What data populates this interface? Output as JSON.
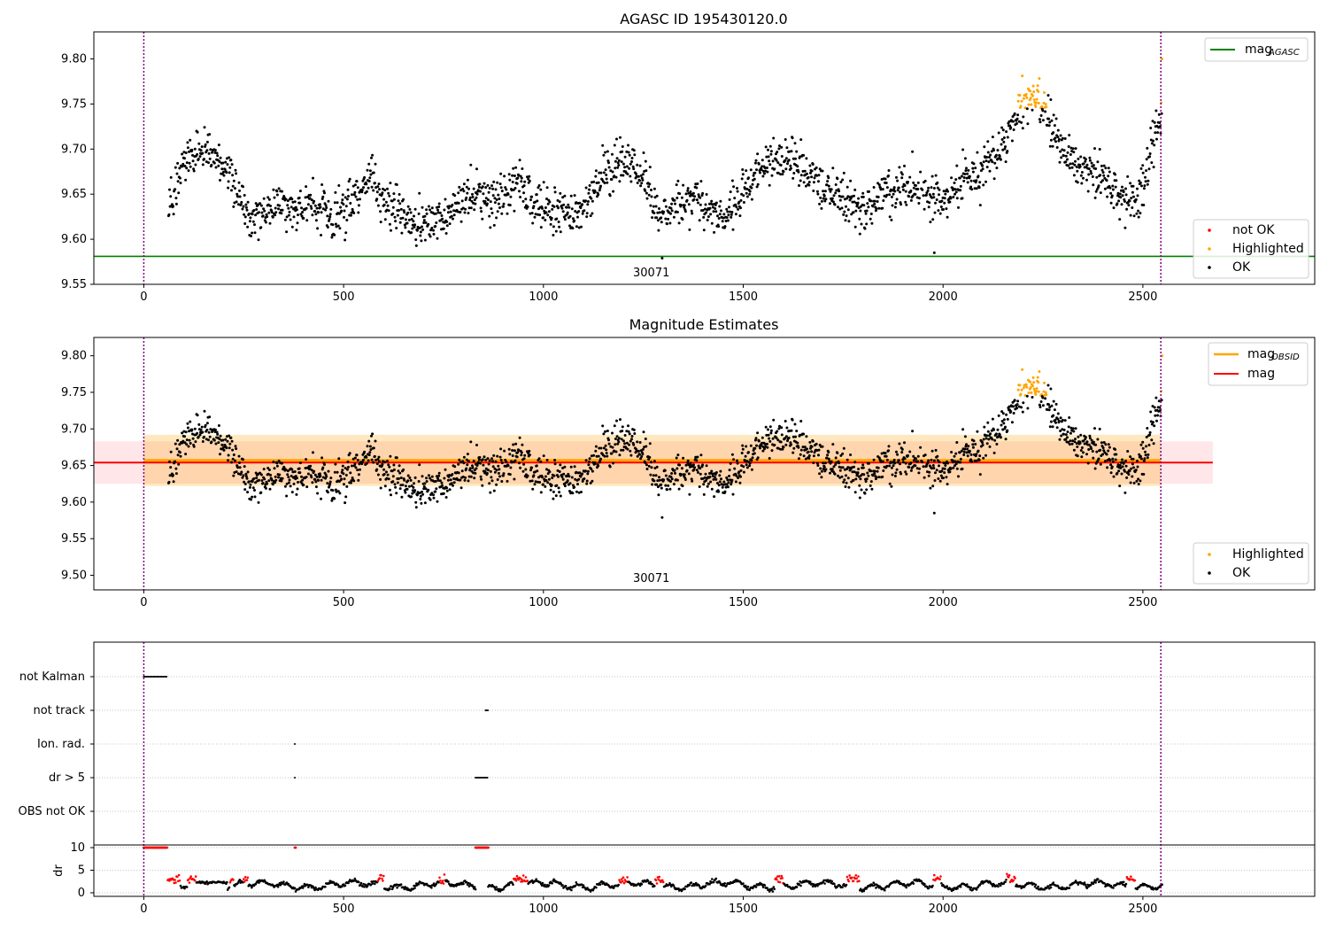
{
  "chart_data": [
    {
      "type": "scatter",
      "title": "AGASC ID 195430120.0",
      "xlabel": "",
      "ylabel": "",
      "xlim": [
        -125,
        2930
      ],
      "ylim": [
        9.55,
        9.83
      ],
      "xticks": [
        0,
        500,
        1000,
        1500,
        2000,
        2500
      ],
      "yticks": [
        9.55,
        9.6,
        9.65,
        9.7,
        9.75,
        9.8
      ],
      "ytick_labels": [
        "9.55",
        "9.60",
        "9.65",
        "9.70",
        "9.75",
        "9.80"
      ],
      "grid": false,
      "obsid_label": "30071",
      "obsid_label_x": 1270,
      "vlines": [
        0,
        2545
      ],
      "hline": {
        "name": "mag_AGASC",
        "y": 9.581,
        "color": "#008000",
        "x_range": [
          -125,
          2930
        ]
      },
      "legend_lines": {
        "placement": "top-right",
        "entries": [
          {
            "label": "mag",
            "sub": "AGASC",
            "color": "#008000"
          }
        ]
      },
      "legend_points": {
        "placement": "bottom-right",
        "entries": [
          {
            "label": "not OK",
            "color": "#ff0000"
          },
          {
            "label": "Highlighted",
            "color": "#ffa500"
          },
          {
            "label": "OK",
            "color": "#000000"
          }
        ]
      },
      "trend": {
        "x": [
          60,
          80,
          110,
          150,
          190,
          230,
          260,
          300,
          360,
          420,
          470,
          520,
          570,
          600,
          650,
          700,
          760,
          820,
          880,
          940,
          980,
          1030,
          1100,
          1150,
          1200,
          1260,
          1290,
          1350,
          1400,
          1450,
          1500,
          1550,
          1600,
          1650,
          1700,
          1750,
          1800,
          1850,
          1900,
          1950,
          2000,
          2050,
          2100,
          2150,
          2190,
          2230,
          2270,
          2310,
          2360,
          2420,
          2470,
          2500,
          2520,
          2545
        ],
        "y": [
          9.625,
          9.66,
          9.69,
          9.7,
          9.69,
          9.66,
          9.625,
          9.63,
          9.635,
          9.64,
          9.625,
          9.64,
          9.67,
          9.645,
          9.625,
          9.615,
          9.625,
          9.655,
          9.64,
          9.67,
          9.635,
          9.625,
          9.635,
          9.675,
          9.685,
          9.665,
          9.62,
          9.645,
          9.64,
          9.625,
          9.655,
          9.68,
          9.69,
          9.685,
          9.66,
          9.645,
          9.63,
          9.65,
          9.655,
          9.65,
          9.645,
          9.665,
          9.675,
          9.7,
          9.745,
          9.755,
          9.73,
          9.69,
          9.675,
          9.66,
          9.64,
          9.65,
          9.7,
          9.74
        ]
      },
      "highlight_ranges": [
        [
          2160,
          2260
        ],
        [
          2520,
          2548
        ]
      ],
      "highlight_threshold": 9.745
    },
    {
      "type": "scatter",
      "title": "Magnitude Estimates",
      "xlabel": "",
      "ylabel": "",
      "xlim": [
        -125,
        2930
      ],
      "ylim": [
        9.48,
        9.825
      ],
      "xticks": [
        0,
        500,
        1000,
        1500,
        2000,
        2500
      ],
      "yticks": [
        9.5,
        9.55,
        9.6,
        9.65,
        9.7,
        9.75,
        9.8
      ],
      "ytick_labels": [
        "9.50",
        "9.55",
        "9.60",
        "9.65",
        "9.70",
        "9.75",
        "9.80"
      ],
      "grid": false,
      "obsid_label": "30071",
      "obsid_label_x": 1270,
      "vlines": [
        0,
        2545
      ],
      "bands": [
        {
          "x_range": [
            -125,
            2675
          ],
          "y_range": [
            9.625,
            9.683
          ],
          "color": "#ffb6c1",
          "opacity": 0.35
        },
        {
          "x_range": [
            0,
            2545
          ],
          "y_range": [
            9.622,
            9.692
          ],
          "color": "#ffa500",
          "opacity": 0.25
        }
      ],
      "hlines": [
        {
          "name": "mag_OBSID",
          "y": 9.657,
          "color": "#ffa500",
          "x_range": [
            0,
            2545
          ]
        },
        {
          "name": "mag",
          "y": 9.654,
          "color": "#ff0000",
          "x_range": [
            -125,
            2675
          ]
        }
      ],
      "legend_lines": {
        "placement": "top-right",
        "entries": [
          {
            "label": "mag",
            "sub": "OBSID",
            "color": "#ffa500"
          },
          {
            "label": "mag",
            "sub": "",
            "color": "#ff0000"
          }
        ]
      },
      "legend_points": {
        "placement": "bottom-right",
        "entries": [
          {
            "label": "Highlighted",
            "color": "#ffa500"
          },
          {
            "label": "OK",
            "color": "#000000"
          }
        ]
      },
      "highlight_ranges": [
        [
          2160,
          2260
        ],
        [
          2520,
          2548
        ]
      ],
      "highlight_threshold": 9.745
    },
    {
      "type": "scatter",
      "title": "",
      "xlabel": "",
      "ylabel": "dr",
      "xlim": [
        -125,
        2930
      ],
      "xticks": [
        0,
        500,
        1000,
        1500,
        2000,
        2500
      ],
      "flag_rows": [
        "not Kalman",
        "not track",
        "Ion. rad.",
        "dr > 5",
        "OBS not OK"
      ],
      "flag_grid": true,
      "flag_segments": [
        {
          "row": "not Kalman",
          "x_range": [
            0,
            58
          ]
        },
        {
          "row": "not track",
          "x_range": [
            855,
            862
          ]
        },
        {
          "row": "Ion. rad.",
          "x_range": [
            378,
            380
          ]
        },
        {
          "row": "dr > 5",
          "x_range": [
            378,
            380
          ]
        },
        {
          "row": "dr > 5",
          "x_range": [
            830,
            862
          ]
        }
      ],
      "dr_yticks": [
        0,
        5,
        10
      ],
      "dr_ylim": [
        0,
        10
      ],
      "dr_clip_value": 10,
      "dr_clipped_x_ranges": [
        [
          0,
          58
        ],
        [
          378,
          381
        ],
        [
          830,
          862
        ]
      ],
      "dr_red_x_ranges": [
        [
          60,
          90
        ],
        [
          110,
          130
        ],
        [
          215,
          225
        ],
        [
          250,
          260
        ],
        [
          585,
          600
        ],
        [
          740,
          755
        ],
        [
          925,
          960
        ],
        [
          1190,
          1210
        ],
        [
          1280,
          1300
        ],
        [
          1580,
          1600
        ],
        [
          1760,
          1790
        ],
        [
          1975,
          1995
        ],
        [
          2160,
          2180
        ],
        [
          2460,
          2480
        ]
      ],
      "vlines": [
        0,
        2545
      ]
    }
  ],
  "colors": {
    "ok": "#000000",
    "not_ok": "#ff0000",
    "highlighted": "#ffa500",
    "agasc_line": "#008000",
    "obsid_line": "#ffa500",
    "mag_line": "#ff0000",
    "vline": "#800080",
    "grid": "#b0b0b0"
  }
}
